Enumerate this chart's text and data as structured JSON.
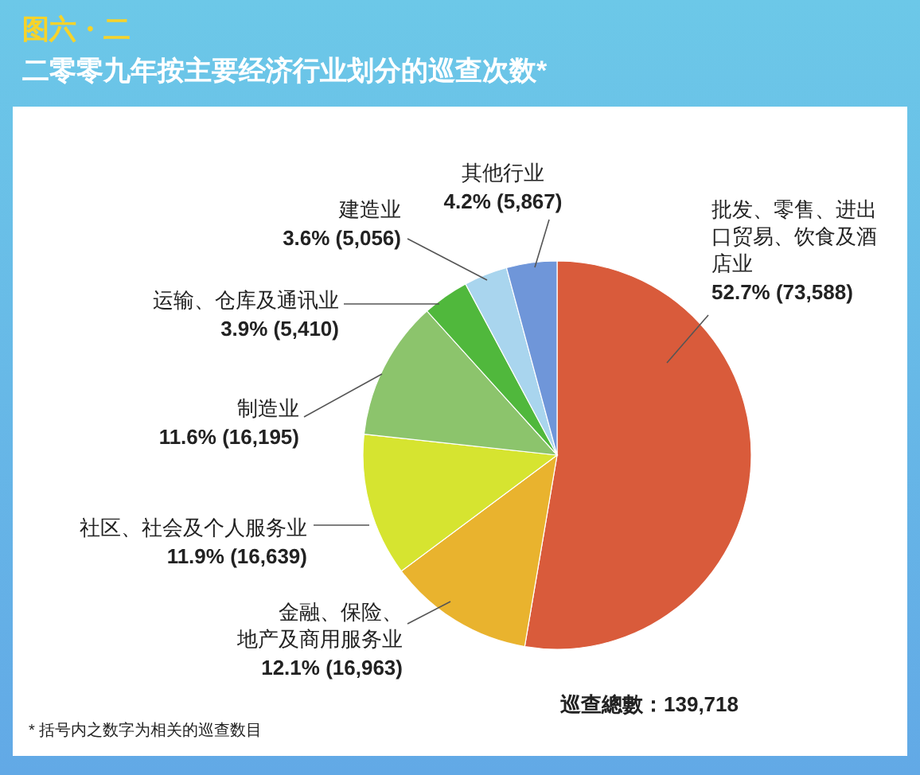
{
  "chart_data": {
    "type": "pie",
    "title": "图六・二",
    "subtitle": "二零零九年按主要经济行业划分的巡查次数*",
    "categories": [
      "批发、零售、进出口贸易、饮食及酒店业",
      "金融、保险、地产及商用服务业",
      "社区、社会及个人服务业",
      "制造业",
      "运输、仓库及通讯业",
      "建造业",
      "其他行业"
    ],
    "values": [
      73588,
      16963,
      16639,
      16195,
      5410,
      5056,
      5867
    ],
    "value_labels": [
      "52.7% (73,588)",
      "12.1% (16,963)",
      "11.9% (16,639)",
      "11.6% (16,195)",
      "3.9% (5,410)",
      "3.6% (5,056)",
      "4.2% (5,867)"
    ],
    "colors": [
      "#d95b3b",
      "#e9b32e",
      "#d6e430",
      "#8cc46c",
      "#50b83c",
      "#a9d5ee",
      "#6f96d9"
    ],
    "annotations": [
      "巡查總數：139,718",
      "*  括号内之数字为相关的巡查数目"
    ]
  }
}
